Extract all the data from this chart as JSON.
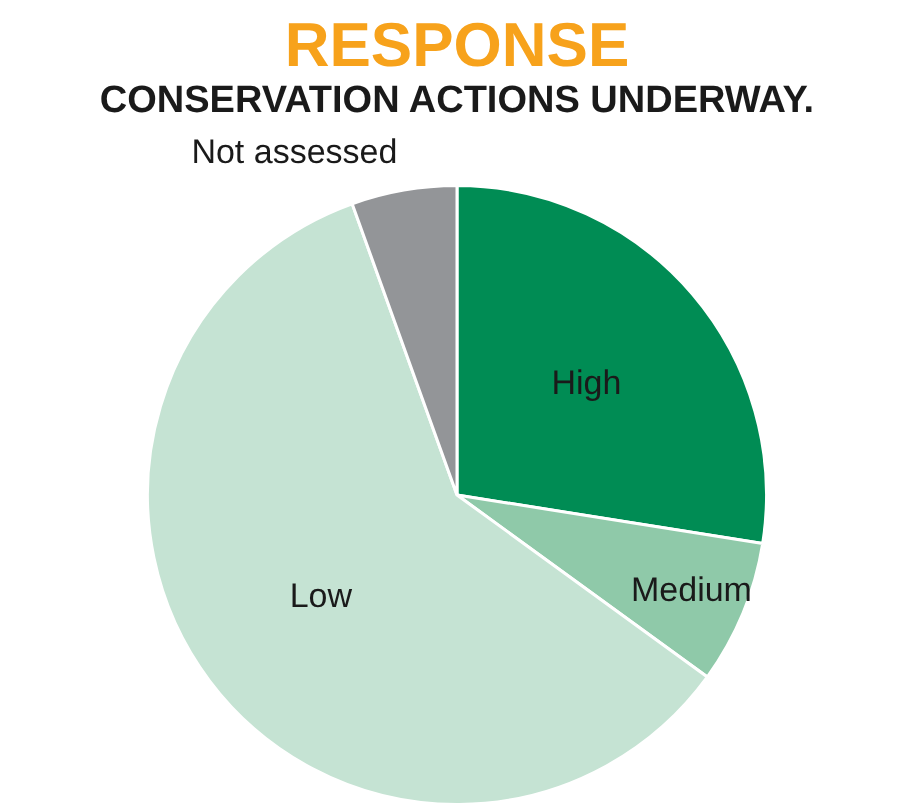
{
  "chart_data": {
    "type": "pie",
    "title": "RESPONSE",
    "subtitle": "CONSERVATION ACTIONS UNDERWAY.",
    "categories": [
      "High",
      "Medium",
      "Low",
      "Not assessed"
    ],
    "values": [
      27.5,
      7.5,
      59.5,
      5.5
    ],
    "colors": [
      "#008c54",
      "#8fc9a9",
      "#c5e3d3",
      "#939598"
    ],
    "legend": false
  }
}
